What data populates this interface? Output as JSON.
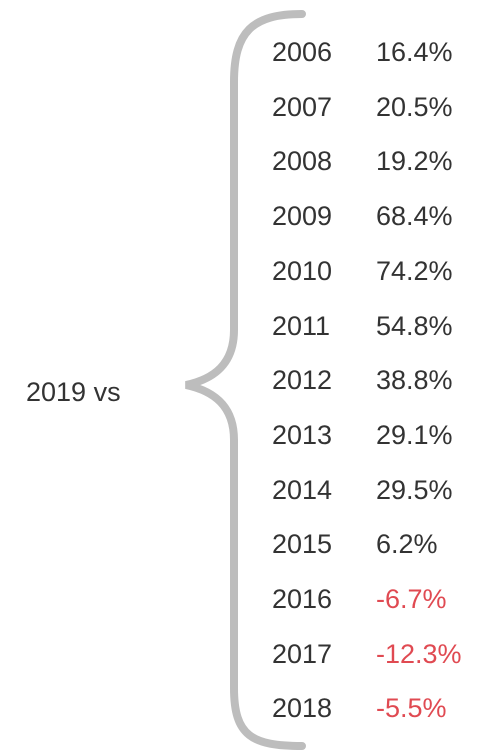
{
  "label": "2019 vs",
  "rows": [
    {
      "year": "2006",
      "change": "16.4%"
    },
    {
      "year": "2007",
      "change": "20.5%"
    },
    {
      "year": "2008",
      "change": "19.2%"
    },
    {
      "year": "2009",
      "change": "68.4%"
    },
    {
      "year": "2010",
      "change": "74.2%"
    },
    {
      "year": "2011",
      "change": "54.8%"
    },
    {
      "year": "2012",
      "change": "38.8%"
    },
    {
      "year": "2013",
      "change": "29.1%"
    },
    {
      "year": "2014",
      "change": "29.5%"
    },
    {
      "year": "2015",
      "change": "6.2%"
    },
    {
      "year": "2016",
      "change": "-6.7%"
    },
    {
      "year": "2017",
      "change": "-12.3%"
    },
    {
      "year": "2018",
      "change": "-5.5%"
    }
  ]
}
